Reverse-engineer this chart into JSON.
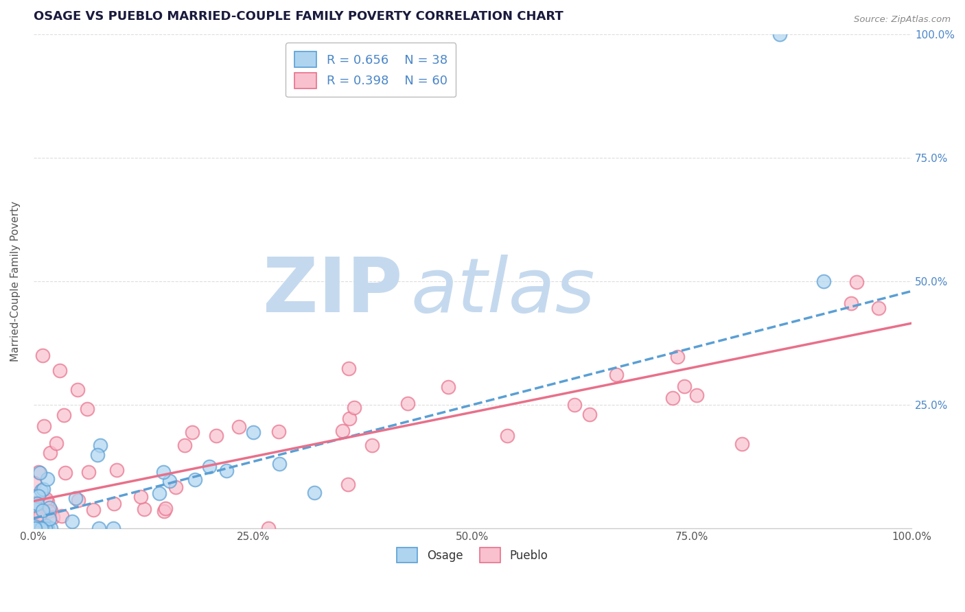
{
  "title": "OSAGE VS PUEBLO MARRIED-COUPLE FAMILY POVERTY CORRELATION CHART",
  "source": "Source: ZipAtlas.com",
  "ylabel": "Married-Couple Family Poverty",
  "xlim": [
    0,
    100
  ],
  "ylim": [
    0,
    100
  ],
  "xticks": [
    0,
    25,
    50,
    75,
    100
  ],
  "yticks": [
    0,
    25,
    50,
    75,
    100
  ],
  "xticklabels": [
    "0.0%",
    "25.0%",
    "50.0%",
    "75.0%",
    "100.0%"
  ],
  "right_yticklabels": [
    "",
    "25.0%",
    "50.0%",
    "75.0%",
    "100.0%"
  ],
  "osage_fill": "#aed4f0",
  "osage_edge": "#5a9fd4",
  "pueblo_fill": "#f9c0ce",
  "pueblo_edge": "#e8708a",
  "osage_line_color": "#5a9fd4",
  "pueblo_line_color": "#e8708a",
  "watermark_zip_color": "#c5d9ee",
  "watermark_atlas_color": "#c5d9ee",
  "grid_color": "#dddddd",
  "legend_R_osage": "R = 0.656",
  "legend_N_osage": "N = 38",
  "legend_R_pueblo": "R = 0.398",
  "legend_N_pueblo": "N = 60",
  "title_color": "#1a1a3e",
  "right_tick_color": "#4a86c8",
  "left_tick_color": "#555555",
  "source_color": "#888888",
  "osage_trend_intercept": 2.0,
  "osage_trend_slope": 0.46,
  "pueblo_trend_intercept": 5.5,
  "pueblo_trend_slope": 0.36
}
